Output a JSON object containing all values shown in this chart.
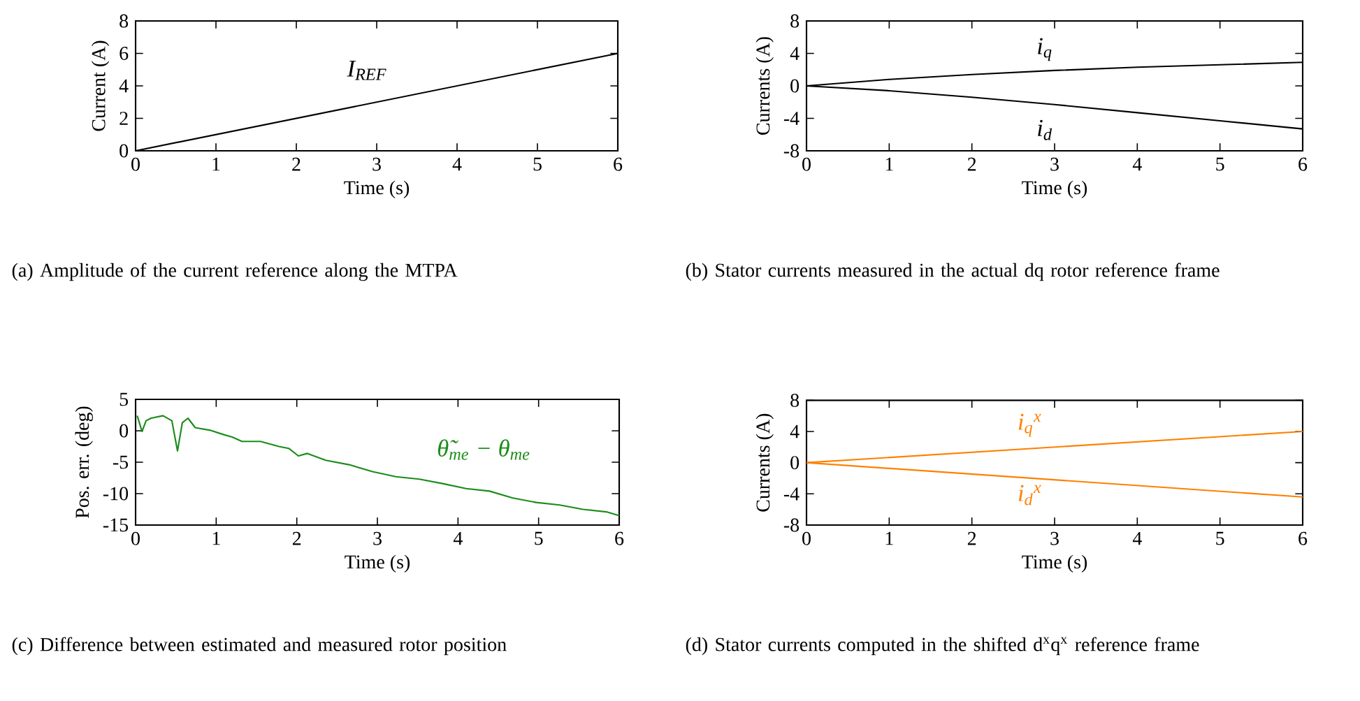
{
  "chart_data": [
    {
      "type": "line",
      "xlabel": "Time (s)",
      "ylabel": "Current (A)",
      "xlim": [
        0,
        6
      ],
      "ylim": [
        0,
        8
      ],
      "xticks": [
        0,
        1,
        2,
        3,
        4,
        5,
        6
      ],
      "yticks": [
        0,
        2,
        4,
        6,
        8
      ],
      "annotations": [
        "(a) Amplitude of the current reference along the MTPA"
      ],
      "series": [
        {
          "name": "I$_{REF}$",
          "color": "#000000",
          "x": [
            0,
            6
          ],
          "values": [
            0,
            6
          ]
        }
      ]
    },
    {
      "type": "line",
      "xlabel": "Time (s)",
      "ylabel": "Currents (A)",
      "xlim": [
        0,
        6
      ],
      "ylim": [
        -8,
        8
      ],
      "xticks": [
        0,
        1,
        2,
        3,
        4,
        5,
        6
      ],
      "yticks": [
        -8,
        -4,
        0,
        4,
        8
      ],
      "annotations": [
        "(b) Stator currents measured in the actual dq rotor reference frame"
      ],
      "series": [
        {
          "name": "i$_{q}$",
          "color": "#000000",
          "x": [
            0,
            1,
            2,
            3,
            4,
            5,
            6
          ],
          "values": [
            0,
            0.8,
            1.4,
            1.9,
            2.3,
            2.6,
            2.9
          ]
        },
        {
          "name": "i$_{d}$",
          "color": "#000000",
          "x": [
            0,
            1,
            2,
            3,
            4,
            5,
            6
          ],
          "values": [
            0,
            -0.6,
            -1.4,
            -2.3,
            -3.3,
            -4.3,
            -5.3
          ]
        }
      ]
    },
    {
      "type": "line",
      "xlabel": "Time (s)",
      "ylabel": "Pos. err. (deg)",
      "xlim": [
        0,
        6
      ],
      "ylim": [
        -15,
        5
      ],
      "xticks": [
        0,
        1,
        2,
        3,
        4,
        5,
        6
      ],
      "yticks": [
        -15,
        -10,
        -5,
        0,
        5
      ],
      "annotations": [
        "(c) Difference between estimated and measured rotor position"
      ],
      "series": [
        {
          "name": "θ̃$_{me}$ − θ$_{me}$",
          "color": "#1a8c1a",
          "x": [
            0.02,
            0.08,
            0.13,
            0.19,
            0.34,
            0.45,
            0.52,
            0.58,
            0.65,
            0.74,
            0.92,
            1.09,
            1.2,
            1.32,
            1.55,
            1.78,
            1.9,
            2.02,
            2.13,
            2.36,
            2.65,
            2.94,
            3.23,
            3.52,
            3.81,
            4.1,
            4.39,
            4.68,
            4.97,
            5.26,
            5.55,
            5.84,
            6.0
          ],
          "values": [
            2.4,
            -0.1,
            1.6,
            2.0,
            2.4,
            1.6,
            -3.2,
            1.3,
            2.0,
            0.5,
            0.1,
            -0.6,
            -1.0,
            -1.7,
            -1.7,
            -2.5,
            -2.8,
            -4.0,
            -3.6,
            -4.7,
            -5.4,
            -6.5,
            -7.3,
            -7.7,
            -8.4,
            -9.2,
            -9.6,
            -10.7,
            -11.4,
            -11.8,
            -12.5,
            -12.9,
            -13.5
          ]
        }
      ]
    },
    {
      "type": "line",
      "xlabel": "Time (s)",
      "ylabel": "Currents (A)",
      "xlim": [
        0,
        6
      ],
      "ylim": [
        -8,
        8
      ],
      "xticks": [
        0,
        1,
        2,
        3,
        4,
        5,
        6
      ],
      "yticks": [
        -8,
        -4,
        0,
        4,
        8
      ],
      "annotations": [
        "(d) Stator currents computed in the shifted d$^{x}$q$^{x}$ reference frame"
      ],
      "series": [
        {
          "name": "i$_{q}$$^{x}$",
          "color": "#ff8000",
          "x": [
            0,
            6
          ],
          "values": [
            0,
            4.0
          ]
        },
        {
          "name": "i$_{d}$$^{x}$",
          "color": "#ff8000",
          "x": [
            0,
            6
          ],
          "values": [
            0,
            -4.4
          ]
        }
      ]
    }
  ]
}
